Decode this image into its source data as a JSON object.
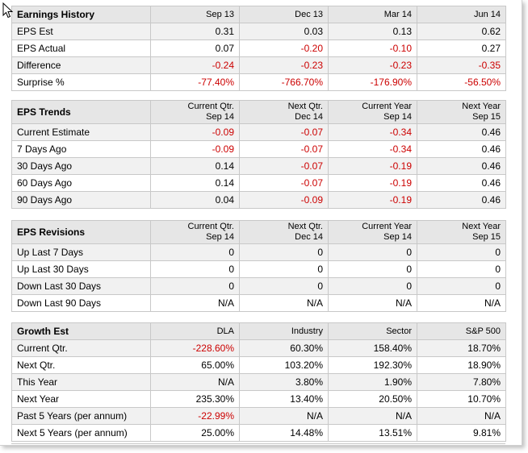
{
  "earnings_history": {
    "title": "Earnings History",
    "columns": [
      "Sep 13",
      "Dec 13",
      "Mar 14",
      "Jun 14"
    ],
    "rows": [
      {
        "label": "EPS Est",
        "values": [
          "0.31",
          "0.03",
          "0.13",
          "0.62"
        ]
      },
      {
        "label": "EPS Actual",
        "values": [
          "0.07",
          "-0.20",
          "-0.10",
          "0.27"
        ]
      },
      {
        "label": "Difference",
        "values": [
          "-0.24",
          "-0.23",
          "-0.23",
          "-0.35"
        ]
      },
      {
        "label": "Surprise %",
        "values": [
          "-77.40%",
          "-766.70%",
          "-176.90%",
          "-56.50%"
        ]
      }
    ]
  },
  "eps_trends": {
    "title": "EPS Trends",
    "columns": [
      {
        "line1": "Current Qtr.",
        "line2": "Sep 14"
      },
      {
        "line1": "Next Qtr.",
        "line2": "Dec 14"
      },
      {
        "line1": "Current Year",
        "line2": "Sep 14"
      },
      {
        "line1": "Next Year",
        "line2": "Sep 15"
      }
    ],
    "rows": [
      {
        "label": "Current Estimate",
        "values": [
          "-0.09",
          "-0.07",
          "-0.34",
          "0.46"
        ]
      },
      {
        "label": "7 Days Ago",
        "values": [
          "-0.09",
          "-0.07",
          "-0.34",
          "0.46"
        ]
      },
      {
        "label": "30 Days Ago",
        "values": [
          "0.14",
          "-0.07",
          "-0.19",
          "0.46"
        ]
      },
      {
        "label": "60 Days Ago",
        "values": [
          "0.14",
          "-0.07",
          "-0.19",
          "0.46"
        ]
      },
      {
        "label": "90 Days Ago",
        "values": [
          "0.04",
          "-0.09",
          "-0.19",
          "0.46"
        ]
      }
    ]
  },
  "eps_revisions": {
    "title": "EPS Revisions",
    "columns": [
      {
        "line1": "Current Qtr.",
        "line2": "Sep 14"
      },
      {
        "line1": "Next Qtr.",
        "line2": "Dec 14"
      },
      {
        "line1": "Current Year",
        "line2": "Sep 14"
      },
      {
        "line1": "Next Year",
        "line2": "Sep 15"
      }
    ],
    "rows": [
      {
        "label": "Up Last 7 Days",
        "values": [
          "0",
          "0",
          "0",
          "0"
        ]
      },
      {
        "label": "Up Last 30 Days",
        "values": [
          "0",
          "0",
          "0",
          "0"
        ]
      },
      {
        "label": "Down Last 30 Days",
        "values": [
          "0",
          "0",
          "0",
          "0"
        ]
      },
      {
        "label": "Down Last 90 Days",
        "values": [
          "N/A",
          "N/A",
          "N/A",
          "N/A"
        ]
      }
    ]
  },
  "growth_est": {
    "title": "Growth Est",
    "columns": [
      "DLA",
      "Industry",
      "Sector",
      "S&P 500"
    ],
    "rows": [
      {
        "label": "Current Qtr.",
        "values": [
          "-228.60%",
          "60.30%",
          "158.40%",
          "18.70%"
        ]
      },
      {
        "label": "Next Qtr.",
        "values": [
          "65.00%",
          "103.20%",
          "192.30%",
          "18.90%"
        ]
      },
      {
        "label": "This Year",
        "values": [
          "N/A",
          "3.80%",
          "1.90%",
          "7.80%"
        ]
      },
      {
        "label": "Next Year",
        "values": [
          "235.30%",
          "13.40%",
          "20.50%",
          "10.70%"
        ]
      },
      {
        "label": "Past 5 Years (per annum)",
        "values": [
          "-22.99%",
          "N/A",
          "N/A",
          "N/A"
        ]
      },
      {
        "label": "Next 5 Years (per annum)",
        "values": [
          "25.00%",
          "14.48%",
          "13.51%",
          "9.81%"
        ]
      }
    ]
  },
  "colors": {
    "negative": "#cc0000",
    "header_bg": "#e6e6e6",
    "alt_row_bg": "#f1f1f1",
    "border": "#c8c8c8"
  },
  "icons": [
    "mouse-cursor-icon"
  ]
}
